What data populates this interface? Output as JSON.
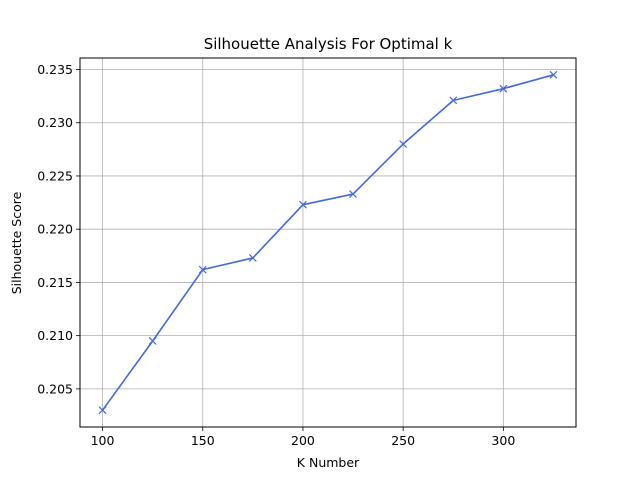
{
  "chart_data": {
    "type": "line",
    "title": "Silhouette Analysis For Optimal k",
    "xlabel": "K Number",
    "ylabel": "Silhouette Score",
    "x": [
      100,
      125,
      150,
      175,
      200,
      225,
      250,
      275,
      300,
      325
    ],
    "series": [
      {
        "values": [
          0.203,
          0.2095,
          0.2162,
          0.2173,
          0.2223,
          0.2233,
          0.228,
          0.2321,
          0.2332,
          0.2345
        ],
        "color": "#4169e1",
        "marker": "x"
      }
    ],
    "xticks": [
      100,
      150,
      200,
      250,
      300
    ],
    "yticks": [
      0.205,
      0.21,
      0.215,
      0.22,
      0.225,
      0.23,
      0.235
    ],
    "xlim": [
      88.75,
      336.25
    ],
    "ylim": [
      0.20142,
      0.23608
    ],
    "grid": true,
    "tick_decimals": 3
  }
}
